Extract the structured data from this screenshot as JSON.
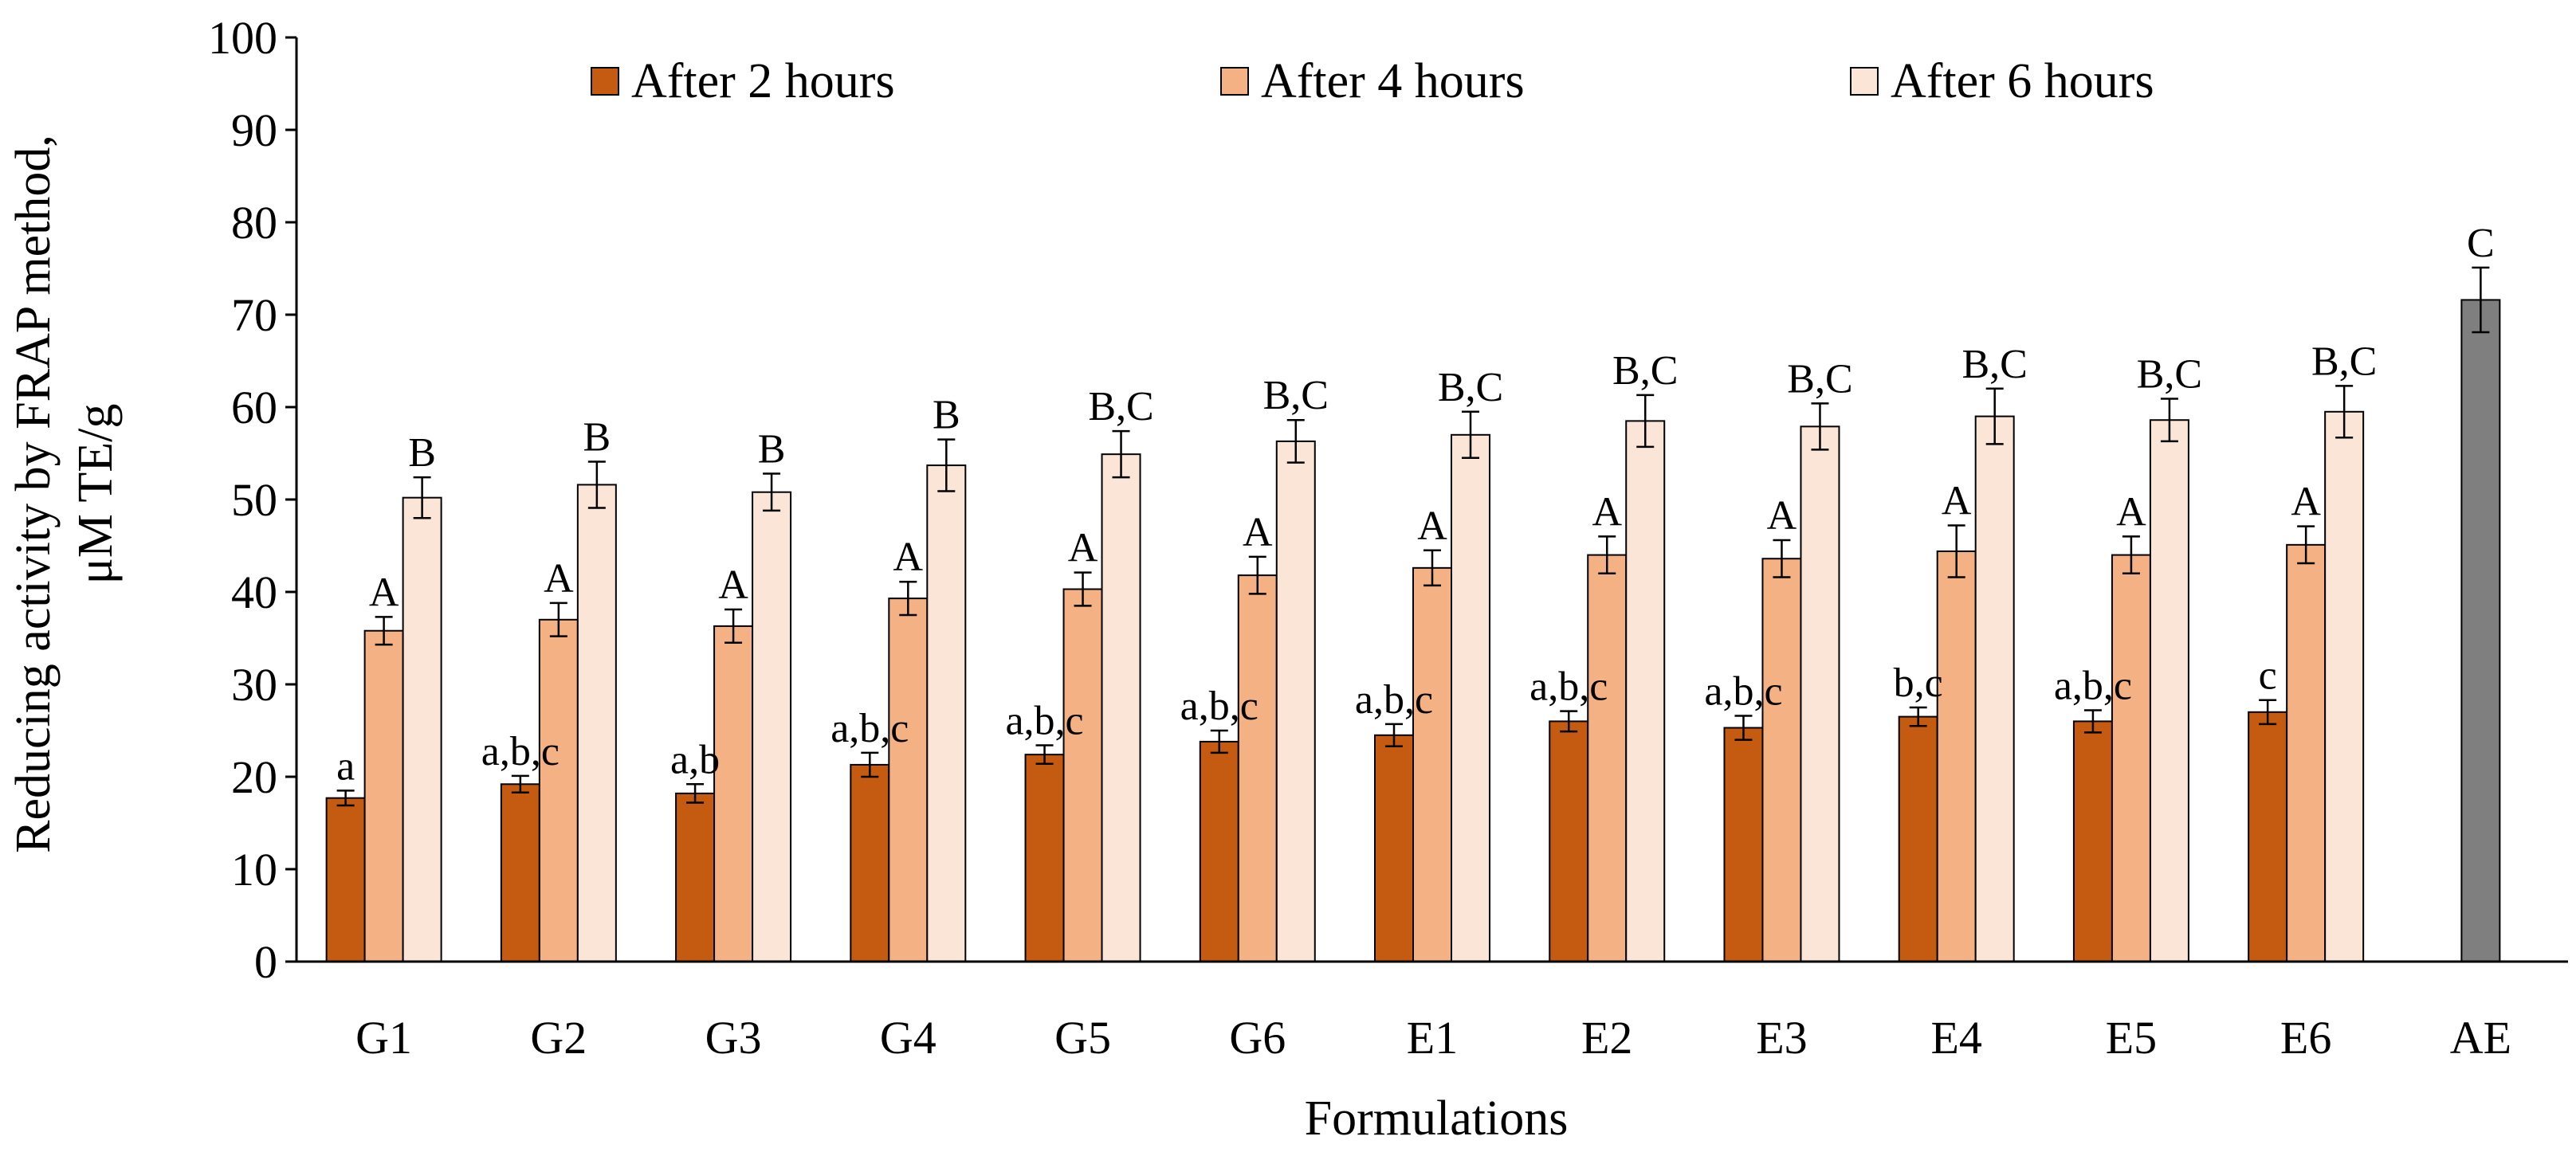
{
  "chart_data": {
    "type": "bar",
    "title": "",
    "xlabel": "Formulations",
    "ylabel_lines": [
      "Reducing activity by FRAP method,",
      "μM TE/g"
    ],
    "ylim": [
      0,
      100
    ],
    "yticks": [
      0,
      10,
      20,
      30,
      40,
      50,
      60,
      70,
      80,
      90,
      100
    ],
    "grid": false,
    "legend_position": "top",
    "categories": [
      "G1",
      "G2",
      "G3",
      "G4",
      "G5",
      "G6",
      "E1",
      "E2",
      "E3",
      "E4",
      "E5",
      "E6",
      "AE"
    ],
    "series": [
      {
        "name": "After 2 hours",
        "color": "#c55a11",
        "values": [
          17.7,
          19.2,
          18.2,
          21.3,
          22.4,
          23.8,
          24.5,
          26.0,
          25.3,
          26.5,
          26.0,
          27.0,
          null
        ],
        "errors": [
          0.8,
          0.9,
          1.0,
          1.3,
          1.0,
          1.2,
          1.2,
          1.1,
          1.3,
          1.0,
          1.2,
          1.3,
          null
        ],
        "labels": [
          "a",
          "a,b,c",
          "a,b",
          "a,b,c",
          "a,b,c",
          "a,b,c",
          "a,b,c",
          "a,b,c",
          "a,b,c",
          "b,c",
          "a,b,c",
          "c",
          ""
        ]
      },
      {
        "name": "After 4 hours",
        "color": "#f4b183",
        "values": [
          35.8,
          37.0,
          36.3,
          39.3,
          40.3,
          41.8,
          42.6,
          44.0,
          43.6,
          44.4,
          44.0,
          45.1,
          null
        ],
        "errors": [
          1.5,
          1.8,
          1.8,
          1.8,
          1.8,
          2.0,
          1.9,
          2.0,
          2.0,
          2.8,
          2.0,
          2.0,
          null
        ],
        "labels": [
          "A",
          "A",
          "A",
          "A",
          "A",
          "A",
          "A",
          "A",
          "A",
          "A",
          "A",
          "A",
          ""
        ]
      },
      {
        "name": "After 6 hours",
        "color": "#fbe5d6",
        "values": [
          50.2,
          51.6,
          50.8,
          53.7,
          54.9,
          56.3,
          57.0,
          58.5,
          57.9,
          59.0,
          58.6,
          59.5,
          null
        ],
        "errors": [
          2.2,
          2.5,
          2.0,
          2.8,
          2.5,
          2.3,
          2.5,
          2.8,
          2.5,
          3.0,
          2.3,
          2.8,
          null
        ],
        "labels": [
          "B",
          "B",
          "B",
          "B",
          "B,C",
          "B,C",
          "B,C",
          "B,C",
          "B,C",
          "B,C",
          "B,C",
          "B,C",
          ""
        ]
      },
      {
        "name": "AE",
        "color": "#7f7f7f",
        "in_legend": false,
        "values": [
          null,
          null,
          null,
          null,
          null,
          null,
          null,
          null,
          null,
          null,
          null,
          null,
          71.6
        ],
        "errors": [
          null,
          null,
          null,
          null,
          null,
          null,
          null,
          null,
          null,
          null,
          null,
          null,
          3.5
        ],
        "labels": [
          "",
          "",
          "",
          "",
          "",
          "",
          "",
          "",
          "",
          "",
          "",
          "",
          "C"
        ]
      }
    ]
  }
}
